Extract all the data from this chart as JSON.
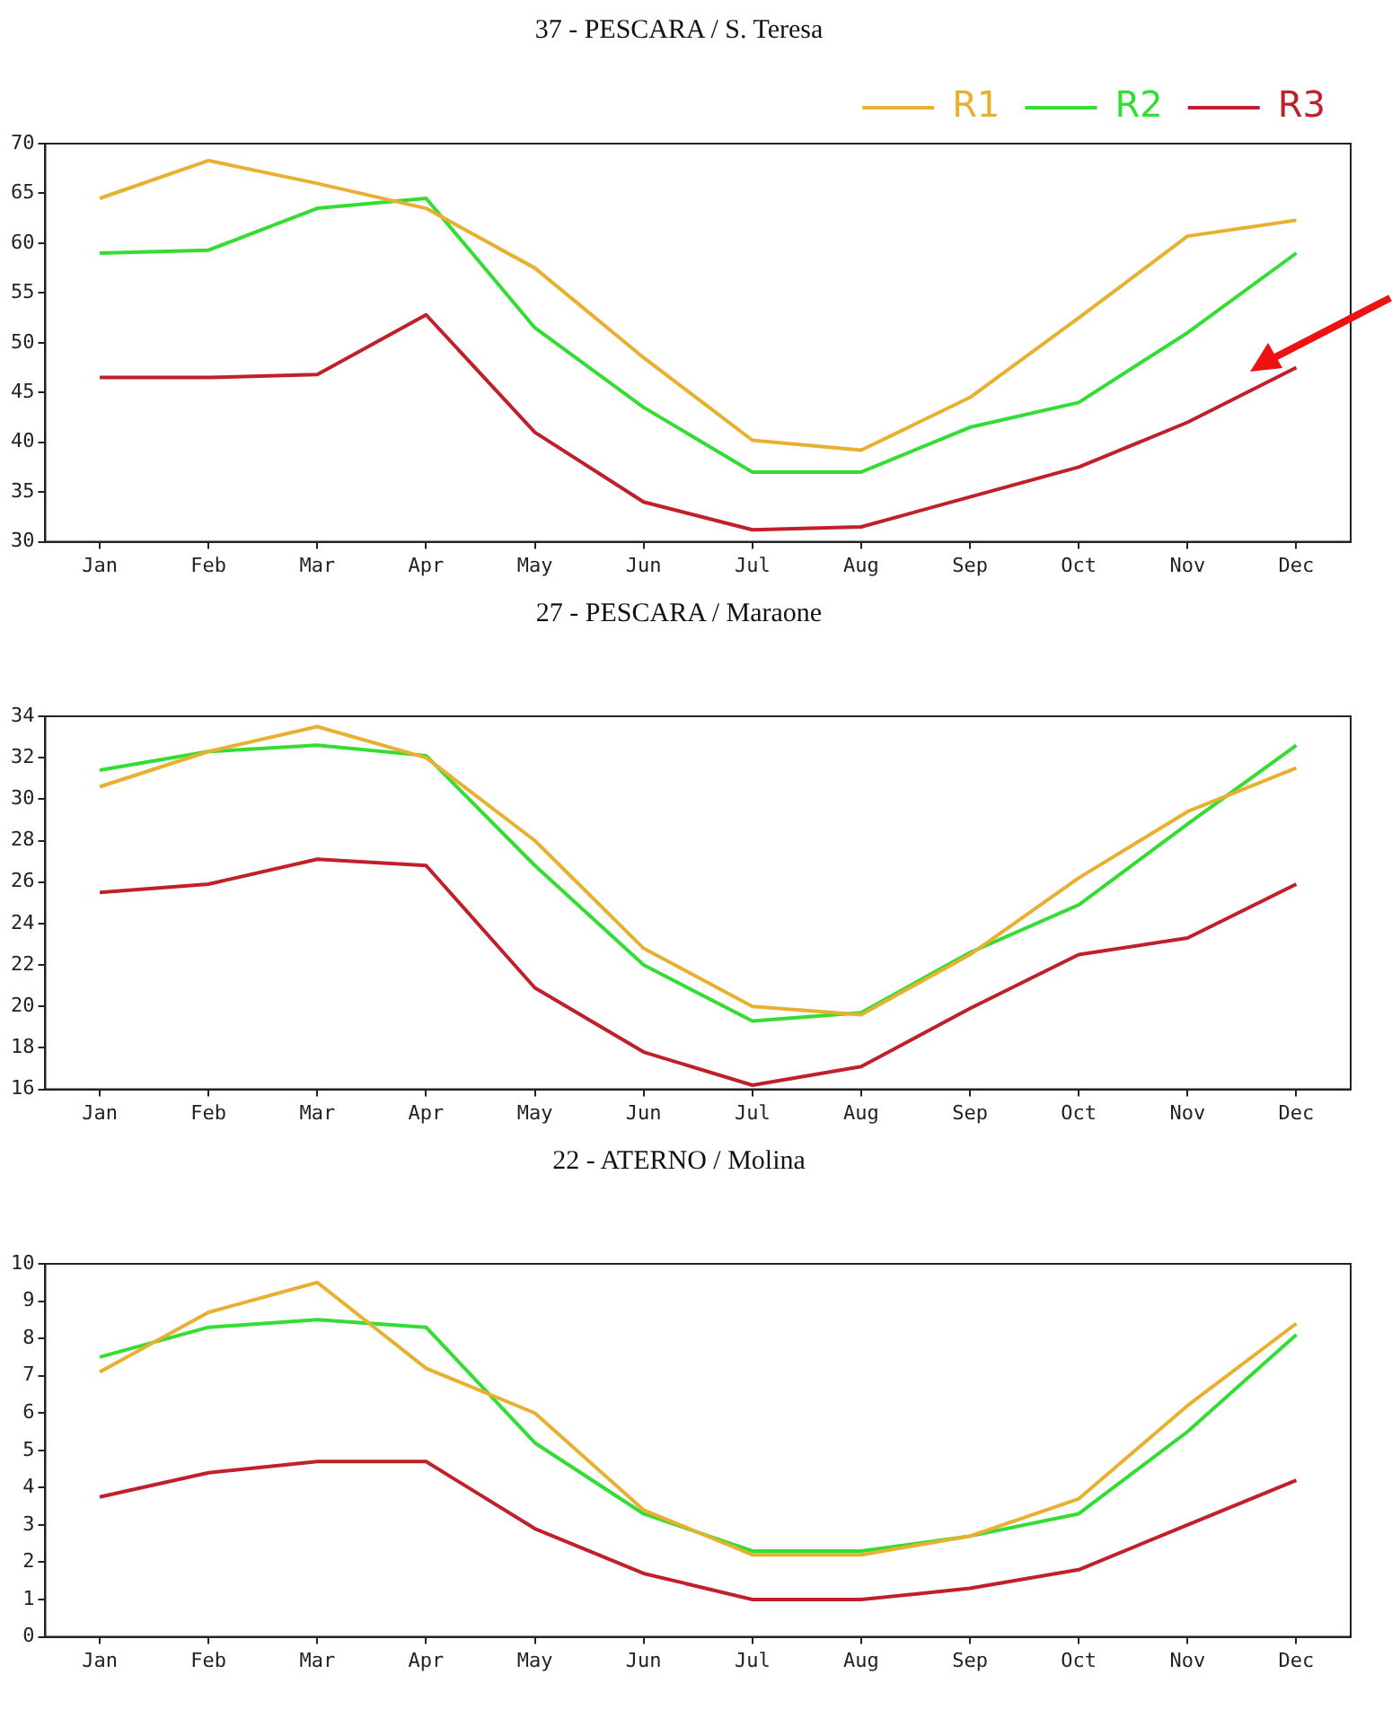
{
  "chart_data": [
    {
      "type": "line",
      "title": "37 - PESCARA / S. Teresa",
      "categories": [
        "Jan",
        "Feb",
        "Mar",
        "Apr",
        "May",
        "Jun",
        "Jul",
        "Aug",
        "Sep",
        "Oct",
        "Nov",
        "Dec"
      ],
      "series": [
        {
          "name": "R1",
          "color": "#e8b030",
          "values": [
            64.5,
            68.3,
            66,
            63.5,
            57.5,
            48.5,
            40.2,
            39.2,
            44.5,
            52.5,
            60.7,
            62.3
          ]
        },
        {
          "name": "R2",
          "color": "#33dd33",
          "values": [
            59,
            59.3,
            63.5,
            64.5,
            51.5,
            43.5,
            37,
            37,
            41.5,
            44,
            51,
            59
          ]
        },
        {
          "name": "R3",
          "color": "#c0202a",
          "values": [
            46.5,
            46.5,
            46.8,
            52.8,
            41,
            34,
            31.2,
            31.5,
            34.5,
            37.5,
            42,
            47.5
          ]
        }
      ],
      "ylim": [
        30,
        70
      ],
      "yticks": [
        30,
        35,
        40,
        45,
        50,
        55,
        60,
        65,
        70
      ],
      "grid": false,
      "legend": "top right",
      "marker": "none",
      "line_style": "solid"
    },
    {
      "type": "line",
      "title": "27 - PESCARA / Maraone",
      "categories": [
        "Jan",
        "Feb",
        "Mar",
        "Apr",
        "May",
        "Jun",
        "Jul",
        "Aug",
        "Sep",
        "Oct",
        "Nov",
        "Dec"
      ],
      "series": [
        {
          "color": "#e8b030",
          "values": [
            30.6,
            32.3,
            33.5,
            32,
            28,
            22.8,
            20,
            19.6,
            22.5,
            26.2,
            29.4,
            31.5
          ]
        },
        {
          "color": "#33dd33",
          "values": [
            31.4,
            32.3,
            32.6,
            32.1,
            26.8,
            22,
            19.3,
            19.7,
            22.6,
            24.9,
            28.8,
            32.6
          ]
        },
        {
          "color": "#c0202a",
          "values": [
            25.5,
            25.9,
            27.1,
            26.8,
            20.9,
            17.8,
            16.2,
            17.1,
            19.9,
            22.5,
            23.3,
            25.9
          ]
        }
      ],
      "ylim": [
        16,
        34
      ],
      "yticks": [
        16,
        18,
        20,
        22,
        24,
        26,
        28,
        30,
        32,
        34
      ],
      "grid": false,
      "legend": false,
      "marker": "none",
      "line_style": "solid"
    },
    {
      "type": "line",
      "title": "22 - ATERNO / Molina",
      "categories": [
        "Jan",
        "Feb",
        "Mar",
        "Apr",
        "May",
        "Jun",
        "Jul",
        "Aug",
        "Sep",
        "Oct",
        "Nov",
        "Dec"
      ],
      "series": [
        {
          "color": "#e8b030",
          "values": [
            7.1,
            8.7,
            9.5,
            7.2,
            6,
            3.4,
            2.2,
            2.2,
            2.7,
            3.7,
            6.2,
            8.4
          ]
        },
        {
          "color": "#33dd33",
          "values": [
            7.5,
            8.3,
            8.5,
            8.3,
            5.2,
            3.3,
            2.3,
            2.3,
            2.7,
            3.3,
            5.5,
            8.1
          ]
        },
        {
          "color": "#c0202a",
          "values": [
            3.75,
            4.4,
            4.7,
            4.7,
            2.9,
            1.7,
            1,
            1,
            1.3,
            1.8,
            3,
            4.2
          ]
        }
      ],
      "ylim": [
        0,
        10
      ],
      "yticks": [
        0,
        1,
        2,
        3,
        4,
        5,
        6,
        7,
        8,
        9,
        10
      ],
      "grid": false,
      "legend": false,
      "marker": "none",
      "line_style": "solid"
    }
  ]
}
